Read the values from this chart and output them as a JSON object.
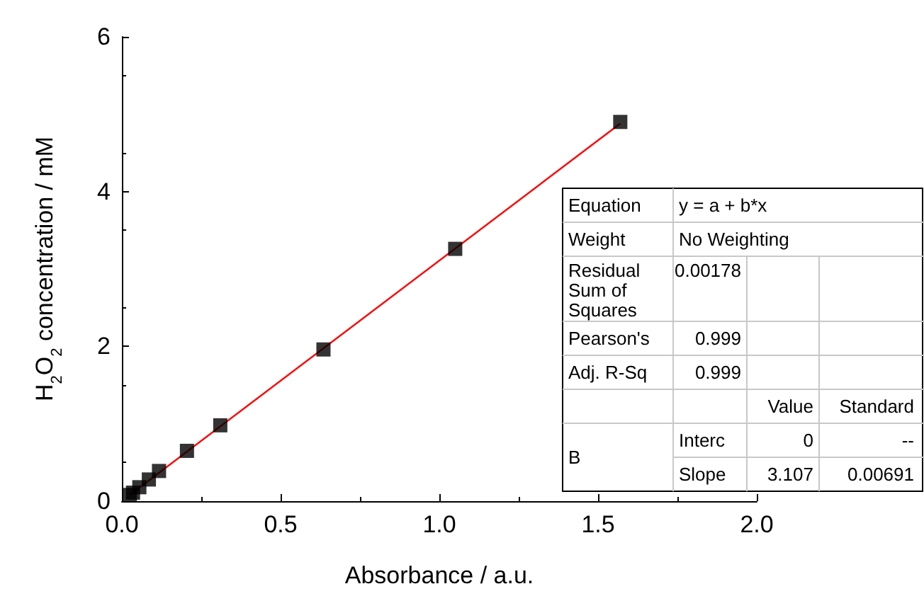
{
  "chart_data": {
    "type": "scatter",
    "xlabel": "Absorbance / a.u.",
    "ylabel": "H$_{2}$O$_{2}$ concentration / mM",
    "xlim": [
      0,
      2.0
    ],
    "xticks": [
      {
        "value": 0,
        "label": "0.0"
      },
      0.5,
      {
        "value": 1,
        "label": "1.0"
      },
      1.5,
      {
        "value": 2,
        "label": "2.0"
      }
    ],
    "ylim": [
      0,
      6
    ],
    "yticks": [
      0,
      2,
      4,
      6
    ],
    "grid": false,
    "marker": "square",
    "series": [
      {
        "color": "#000000",
        "x": [
          0.025,
          0.035,
          0.055,
          0.085,
          0.117,
          0.205,
          0.31,
          0.635,
          1.05,
          1.57
        ],
        "values": [
          0.08,
          0.11,
          0.18,
          0.28,
          0.39,
          0.65,
          0.98,
          1.96,
          3.26,
          4.9
        ]
      },
      {
        "type": "line",
        "color": "#ff0000",
        "marker": "none",
        "line_style": "solid",
        "x": [
          0.025,
          1.57
        ],
        "values": [
          0.08,
          4.88
        ]
      }
    ],
    "annotations": [
      "Equation",
      "y = a + b*x",
      "Weight",
      "No Weighting",
      "Residual\nSum of\nSquares",
      "0.00178",
      "Pearson's",
      "0.999",
      "Adj. R-Sq",
      "0.999",
      "Value",
      "Standard",
      "B",
      "Interc",
      "0",
      "--",
      "Slope",
      "3.107",
      "0.00691"
    ]
  }
}
